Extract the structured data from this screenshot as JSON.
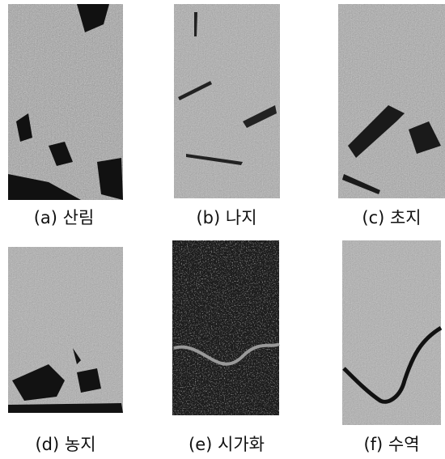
{
  "panels": [
    {
      "label": "(a) 산림"
    },
    {
      "label": "(b) 나지"
    },
    {
      "label": "(c) 초지"
    },
    {
      "label": "(d) 농지"
    },
    {
      "label": "(e) 시가화"
    },
    {
      "label": "(f) 수역"
    }
  ]
}
